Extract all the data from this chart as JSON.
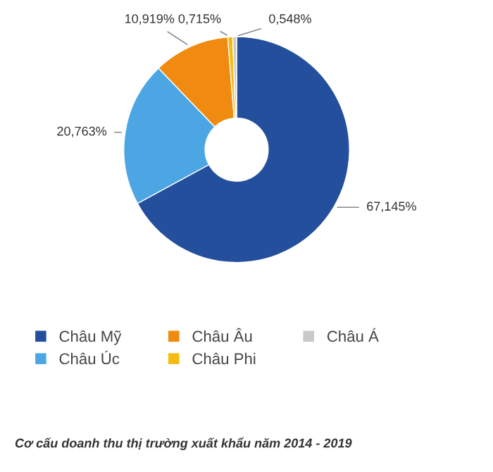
{
  "chart_data": {
    "type": "donut",
    "categories": [
      "Châu Mỹ",
      "Châu Úc",
      "Châu Âu",
      "Châu Phi",
      "Châu Á"
    ],
    "values": [
      67.145,
      20.763,
      10.919,
      0.715,
      0.548
    ],
    "value_labels": [
      "67,145%",
      "20,763%",
      "10,919%",
      "0,715%",
      "0,548%"
    ],
    "colors": [
      "#244f9c",
      "#4ba6e3",
      "#f08a10",
      "#f4bb13",
      "#c9c9c9"
    ],
    "legend": "bottom",
    "annotations": [
      "Cơ cấu doanh thu thị trường xuất khẩu năm 2014 - 2019"
    ]
  }
}
